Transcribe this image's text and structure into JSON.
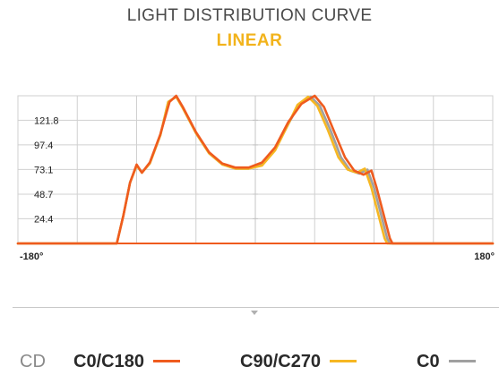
{
  "title": "LIGHT DISTRIBUTION CURVE",
  "subtitle": "LINEAR",
  "legend": {
    "unit": "CD",
    "items": [
      {
        "label": "C0/C180",
        "color": "#ef5b1e"
      },
      {
        "label": "C90/C270",
        "color": "#f6b722"
      },
      {
        "label": "C0",
        "color": "#a0a0a0"
      }
    ]
  },
  "chart_data": {
    "type": "line",
    "title": "LIGHT DISTRIBUTION CURVE",
    "subtitle": "LINEAR",
    "xlim": [
      -180,
      180
    ],
    "ylim": [
      0,
      146
    ],
    "x_tick_labels": [
      "-180°",
      "180°"
    ],
    "y_ticks": [
      24.4,
      48.7,
      73.1,
      97.4,
      121.8
    ],
    "y_tick_labels": [
      "24.4",
      "48.7",
      "73.1",
      "97.4",
      "121.8"
    ],
    "grid": true,
    "series": [
      {
        "name": "C0/C180",
        "color": "#ef5b1e",
        "points": [
          [
            -180,
            0
          ],
          [
            -105,
            0
          ],
          [
            -100,
            28
          ],
          [
            -95,
            60
          ],
          [
            -90,
            78
          ],
          [
            -86,
            70
          ],
          [
            -80,
            80
          ],
          [
            -72,
            108
          ],
          [
            -65,
            140
          ],
          [
            -60,
            146
          ],
          [
            -55,
            135
          ],
          [
            -45,
            110
          ],
          [
            -35,
            90
          ],
          [
            -25,
            79
          ],
          [
            -15,
            75
          ],
          [
            -5,
            75
          ],
          [
            5,
            80
          ],
          [
            15,
            95
          ],
          [
            25,
            120
          ],
          [
            35,
            138
          ],
          [
            45,
            146
          ],
          [
            52,
            135
          ],
          [
            60,
            110
          ],
          [
            68,
            85
          ],
          [
            75,
            72
          ],
          [
            82,
            68
          ],
          [
            88,
            72
          ],
          [
            92,
            55
          ],
          [
            97,
            30
          ],
          [
            102,
            5
          ],
          [
            104,
            0
          ],
          [
            180,
            0
          ]
        ]
      },
      {
        "name": "C90/C270",
        "color": "#f6b722",
        "points": [
          [
            -180,
            0
          ],
          [
            -105,
            0
          ],
          [
            -100,
            28
          ],
          [
            -95,
            60
          ],
          [
            -90,
            77
          ],
          [
            -86,
            70
          ],
          [
            -80,
            79
          ],
          [
            -72,
            107
          ],
          [
            -66,
            140
          ],
          [
            -60,
            145
          ],
          [
            -55,
            134
          ],
          [
            -45,
            109
          ],
          [
            -35,
            89
          ],
          [
            -25,
            78
          ],
          [
            -15,
            74
          ],
          [
            -5,
            74
          ],
          [
            5,
            77
          ],
          [
            15,
            92
          ],
          [
            25,
            118
          ],
          [
            32,
            137
          ],
          [
            40,
            145
          ],
          [
            47,
            136
          ],
          [
            55,
            112
          ],
          [
            63,
            85
          ],
          [
            70,
            73
          ],
          [
            77,
            70
          ],
          [
            83,
            74
          ],
          [
            88,
            55
          ],
          [
            93,
            30
          ],
          [
            98,
            5
          ],
          [
            100,
            0
          ],
          [
            180,
            0
          ]
        ]
      },
      {
        "name": "C0",
        "color": "#a0a0a0",
        "points": [
          [
            -180,
            0
          ],
          [
            -105,
            0
          ],
          [
            -100,
            28
          ],
          [
            -95,
            60
          ],
          [
            -90,
            77
          ],
          [
            -86,
            70
          ],
          [
            -80,
            79
          ],
          [
            -72,
            107
          ],
          [
            -66,
            140
          ],
          [
            -60,
            145
          ],
          [
            -55,
            134
          ],
          [
            -45,
            109
          ],
          [
            -35,
            89
          ],
          [
            -25,
            78
          ],
          [
            -15,
            74
          ],
          [
            -5,
            74
          ],
          [
            5,
            78
          ],
          [
            15,
            93
          ],
          [
            25,
            118
          ],
          [
            33,
            137
          ],
          [
            42,
            145
          ],
          [
            49,
            136
          ],
          [
            57,
            112
          ],
          [
            65,
            85
          ],
          [
            72,
            72
          ],
          [
            79,
            69
          ],
          [
            85,
            73
          ],
          [
            90,
            55
          ],
          [
            95,
            30
          ],
          [
            100,
            5
          ],
          [
            102,
            0
          ],
          [
            180,
            0
          ]
        ]
      }
    ]
  }
}
